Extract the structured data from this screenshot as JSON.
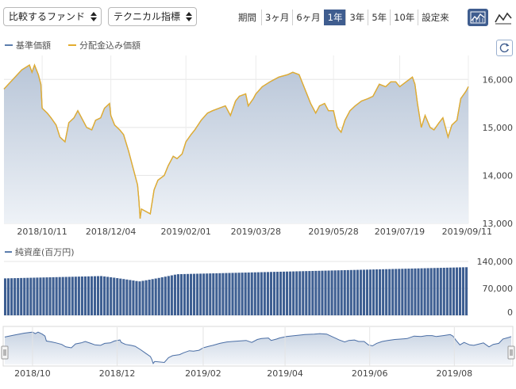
{
  "toolbar": {
    "compare_select": "比較するファンド",
    "indicator_select": "テクニカル指標",
    "period_label": "期間",
    "periods": [
      "3ヶ月",
      "6ヶ月",
      "1年",
      "3年",
      "5年",
      "10年",
      "設定来"
    ],
    "active_period": "1年"
  },
  "legend": {
    "base_price": "基準価額",
    "dividend_price": "分配金込み価額",
    "net_assets": "純資産(百万円)"
  },
  "colors": {
    "base_line": "#5b7dad",
    "dividend_line": "#e3ad2f",
    "area_fill_top": "#b9c6d8",
    "area_fill_bottom": "#eef2f7",
    "bars": "#3e5f92",
    "accent": "#3f5d8f"
  },
  "chart_data": [
    {
      "type": "line",
      "ylim": [
        13000,
        16500
      ],
      "yticks": [
        13000,
        14000,
        15000,
        16000
      ],
      "ytick_labels": [
        "13,000",
        "14,000",
        "15,000",
        "16,000"
      ],
      "x_start": "2018/09/11",
      "x_end": "2019/09/11",
      "xtick_labels": [
        "2018/10/11",
        "2018/12/04",
        "2019/02/01",
        "2019/03/28",
        "2019/05/28",
        "2019/07/19",
        "2019/09/11"
      ],
      "series": [
        {
          "name": "基準価額",
          "points": [
            [
              "2018/09/11",
              15800
            ],
            [
              "2018/09/18",
              16000
            ],
            [
              "2018/09/25",
              16200
            ],
            [
              "2018/10/01",
              16300
            ],
            [
              "2018/10/03",
              16150
            ],
            [
              "2018/10/05",
              16300
            ],
            [
              "2018/10/08",
              16100
            ],
            [
              "2018/10/10",
              15900
            ],
            [
              "2018/10/11",
              15400
            ],
            [
              "2018/10/15",
              15300
            ],
            [
              "2018/10/18",
              15200
            ],
            [
              "2018/10/22",
              15050
            ],
            [
              "2018/10/25",
              14800
            ],
            [
              "2018/10/29",
              14700
            ],
            [
              "2018/11/01",
              15100
            ],
            [
              "2018/11/05",
              15200
            ],
            [
              "2018/11/08",
              15350
            ],
            [
              "2018/11/12",
              15150
            ],
            [
              "2018/11/15",
              15000
            ],
            [
              "2018/11/19",
              14950
            ],
            [
              "2018/11/22",
              15150
            ],
            [
              "2018/11/26",
              15200
            ],
            [
              "2018/11/29",
              15400
            ],
            [
              "2018/12/03",
              15500
            ],
            [
              "2018/12/04",
              15250
            ],
            [
              "2018/12/07",
              15050
            ],
            [
              "2018/12/11",
              14950
            ],
            [
              "2018/12/14",
              14850
            ],
            [
              "2018/12/18",
              14500
            ],
            [
              "2018/12/21",
              14200
            ],
            [
              "2018/12/25",
              13800
            ],
            [
              "2018/12/26",
              13500
            ],
            [
              "2018/12/27",
              13100
            ],
            [
              "2018/12/28",
              13300
            ],
            [
              "2019/01/04",
              13200
            ],
            [
              "2019/01/07",
              13700
            ],
            [
              "2019/01/10",
              13900
            ],
            [
              "2019/01/15",
              14000
            ],
            [
              "2019/01/18",
              14200
            ],
            [
              "2019/01/22",
              14400
            ],
            [
              "2019/01/25",
              14350
            ],
            [
              "2019/01/29",
              14450
            ],
            [
              "2019/02/01",
              14700
            ],
            [
              "2019/02/05",
              14850
            ],
            [
              "2019/02/08",
              14950
            ],
            [
              "2019/02/13",
              15150
            ],
            [
              "2019/02/18",
              15300
            ],
            [
              "2019/02/22",
              15350
            ],
            [
              "2019/02/27",
              15400
            ],
            [
              "2019/03/04",
              15450
            ],
            [
              "2019/03/08",
              15250
            ],
            [
              "2019/03/12",
              15550
            ],
            [
              "2019/03/15",
              15650
            ],
            [
              "2019/03/20",
              15700
            ],
            [
              "2019/03/22",
              15450
            ],
            [
              "2019/03/26",
              15600
            ],
            [
              "2019/03/28",
              15700
            ],
            [
              "2019/04/02",
              15850
            ],
            [
              "2019/04/08",
              15950
            ],
            [
              "2019/04/15",
              16050
            ],
            [
              "2019/04/22",
              16100
            ],
            [
              "2019/04/26",
              16150
            ],
            [
              "2019/05/01",
              16100
            ],
            [
              "2019/05/07",
              15700
            ],
            [
              "2019/05/10",
              15500
            ],
            [
              "2019/05/14",
              15300
            ],
            [
              "2019/05/17",
              15450
            ],
            [
              "2019/05/21",
              15500
            ],
            [
              "2019/05/24",
              15350
            ],
            [
              "2019/05/28",
              15350
            ],
            [
              "2019/05/31",
              15000
            ],
            [
              "2019/06/03",
              14900
            ],
            [
              "2019/06/06",
              15150
            ],
            [
              "2019/06/10",
              15350
            ],
            [
              "2019/06/14",
              15450
            ],
            [
              "2019/06/19",
              15550
            ],
            [
              "2019/06/24",
              15600
            ],
            [
              "2019/06/28",
              15650
            ],
            [
              "2019/07/03",
              15900
            ],
            [
              "2019/07/08",
              15850
            ],
            [
              "2019/07/12",
              15950
            ],
            [
              "2019/07/16",
              15950
            ],
            [
              "2019/07/19",
              15850
            ],
            [
              "2019/07/24",
              15950
            ],
            [
              "2019/07/29",
              16050
            ],
            [
              "2019/07/31",
              15900
            ],
            [
              "2019/08/02",
              15500
            ],
            [
              "2019/08/05",
              15000
            ],
            [
              "2019/08/08",
              15250
            ],
            [
              "2019/08/12",
              15000
            ],
            [
              "2019/08/15",
              14950
            ],
            [
              "2019/08/19",
              15100
            ],
            [
              "2019/08/22",
              15200
            ],
            [
              "2019/08/26",
              14800
            ],
            [
              "2019/08/29",
              15050
            ],
            [
              "2019/09/02",
              15150
            ],
            [
              "2019/09/05",
              15600
            ],
            [
              "2019/09/09",
              15750
            ],
            [
              "2019/09/11",
              15850
            ]
          ]
        },
        {
          "name": "分配金込み価額",
          "same_as": "基準価額"
        }
      ]
    },
    {
      "type": "bar",
      "ylim": [
        0,
        140000
      ],
      "yticks": [
        0,
        70000,
        140000
      ],
      "ytick_labels": [
        "0",
        "70,000",
        "140,000"
      ],
      "series": [
        {
          "name": "純資産(百万円)",
          "start": 96000,
          "end": 125000,
          "dip_date": "2018/12/26",
          "dip_value": 88000
        }
      ]
    },
    {
      "type": "area",
      "role": "navigator",
      "xtick_labels": [
        "2018/10",
        "2018/12",
        "2019/02",
        "2019/04",
        "2019/06",
        "2019/08"
      ]
    }
  ]
}
